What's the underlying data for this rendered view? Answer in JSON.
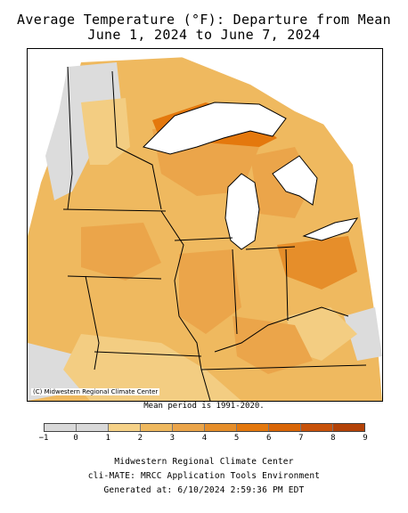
{
  "title_line1": "Average Temperature (°F): Departure from Mean",
  "title_line2": "June 1, 2024 to June 7, 2024",
  "credit": "(C) Midwestern Regional Climate Center",
  "mean_period": "Mean period is 1991-2020.",
  "legend": {
    "ticks": [
      "−1",
      "0",
      "1",
      "2",
      "3",
      "4",
      "5",
      "6",
      "7",
      "8",
      "9"
    ],
    "colors": [
      "#d9d9d9",
      "#d9d9d9",
      "#f6d288",
      "#efb95f",
      "#eba54a",
      "#e68e2a",
      "#e4780d",
      "#d96506",
      "#c8520a",
      "#b34207"
    ]
  },
  "footer": {
    "line1": "Midwestern Regional Climate Center",
    "line2": "cli-MATE: MRCC Application Tools Environment",
    "line3": "Generated at: 6/10/2024 2:59:36 PM EDT"
  }
}
